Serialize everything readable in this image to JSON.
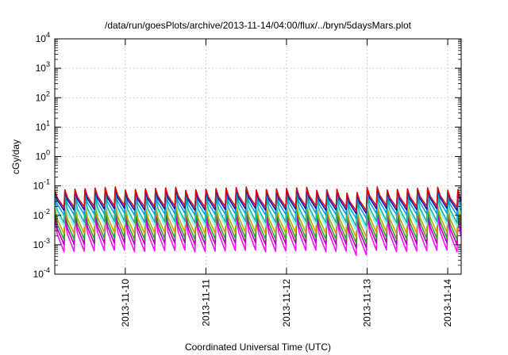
{
  "chart_data": {
    "type": "line",
    "title": "/data/run/goesPlots/archive/2013-11-14/04:00/flux/../bryn/5daysMars.plot",
    "xlabel": "Coordinated Universal Time (UTC)",
    "ylabel": "cGy/day",
    "yscale": "log",
    "ylim": [
      0.0001,
      10000
    ],
    "y_ticks": [
      {
        "base": "10",
        "exp": "-4",
        "value": 0.0001
      },
      {
        "base": "10",
        "exp": "-3",
        "value": 0.001
      },
      {
        "base": "10",
        "exp": "-2",
        "value": 0.01
      },
      {
        "base": "10",
        "exp": "-1",
        "value": 0.1
      },
      {
        "base": "10",
        "exp": "0",
        "value": 1
      },
      {
        "base": "10",
        "exp": "1",
        "value": 10
      },
      {
        "base": "10",
        "exp": "2",
        "value": 100
      },
      {
        "base": "10",
        "exp": "3",
        "value": 1000
      },
      {
        "base": "10",
        "exp": "4",
        "value": 10000
      }
    ],
    "xlim": [
      "2013-11-09 03:00",
      "2013-11-14 04:00"
    ],
    "x_ticks": [
      {
        "label": "2013-11-10",
        "value": "2013-11-10 00:00"
      },
      {
        "label": "2013-11-11",
        "value": "2013-11-11 00:00"
      },
      {
        "label": "2013-11-12",
        "value": "2013-11-12 00:00"
      },
      {
        "label": "2013-11-13",
        "value": "2013-11-13 00:00"
      },
      {
        "label": "2013-11-14",
        "value": "2013-11-14 00:00"
      }
    ],
    "grid": true,
    "pattern": {
      "cycle_hours": 3,
      "comment_free_shape": "sawtooth",
      "dip_cycles": [
        29,
        30,
        60,
        61,
        62
      ],
      "dip_depth_decades": 0.15
    },
    "series": [
      {
        "color": "#d01010",
        "peak": 0.082,
        "trough": 0.02
      },
      {
        "color": "#1010c8",
        "peak": 0.072,
        "trough": 0.016
      },
      {
        "color": "#00a0e0",
        "peak": 0.055,
        "trough": 0.011
      },
      {
        "color": "#20b0a0",
        "peak": 0.04,
        "trough": 0.006
      },
      {
        "color": "#80ffff",
        "peak": 0.03,
        "trough": 0.0045
      },
      {
        "color": "#c8a000",
        "peak": 0.022,
        "trough": 0.0025
      },
      {
        "color": "#30a030",
        "peak": 0.016,
        "trough": 0.0016
      },
      {
        "color": "#b000b0",
        "peak": 0.011,
        "trough": 0.0011
      },
      {
        "color": "#ff10ff",
        "peak": 0.008,
        "trough": 0.00062
      }
    ]
  }
}
